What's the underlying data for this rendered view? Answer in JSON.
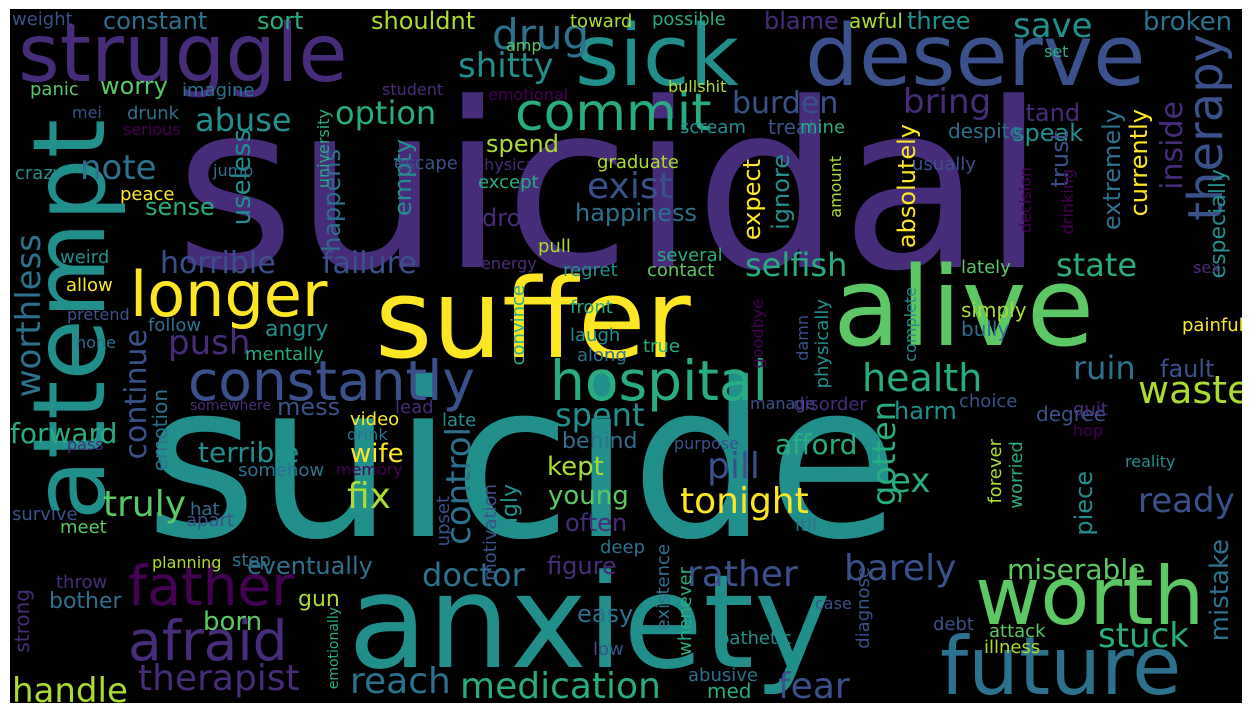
{
  "colors": {
    "background": "#000000",
    "frame": "#ffffff",
    "palette": [
      "#440154",
      "#472c7a",
      "#3b518b",
      "#2c718e",
      "#21908d",
      "#27ad81",
      "#5cc863",
      "#aadc32",
      "#fde725"
    ]
  },
  "words": [
    {
      "text": "suicidal",
      "color": "#472c7a"
    },
    {
      "text": "suicide",
      "color": "#21908d"
    },
    {
      "text": "suffer",
      "color": "#fde725"
    },
    {
      "text": "anxiety",
      "color": "#21908d"
    },
    {
      "text": "alive",
      "color": "#5cc863"
    },
    {
      "text": "attempt",
      "color": "#21908d"
    },
    {
      "text": "deserve",
      "color": "#3b518b"
    },
    {
      "text": "struggle",
      "color": "#472c7a"
    },
    {
      "text": "sick",
      "color": "#21908d"
    },
    {
      "text": "worth",
      "color": "#5cc863"
    },
    {
      "text": "future",
      "color": "#2c718e"
    },
    {
      "text": "longer",
      "color": "#fde725"
    },
    {
      "text": "hospital",
      "color": "#27ad81"
    },
    {
      "text": "constantly",
      "color": "#3b518b"
    },
    {
      "text": "therapy",
      "color": "#3b518b"
    },
    {
      "text": "father",
      "color": "#440154"
    },
    {
      "text": "afraid",
      "color": "#472c7a"
    },
    {
      "text": "commit",
      "color": "#27ad81"
    },
    {
      "text": "medication",
      "color": "#27ad81"
    },
    {
      "text": "therapist",
      "color": "#472c7a"
    },
    {
      "text": "handle",
      "color": "#aadc32"
    },
    {
      "text": "reach",
      "color": "#2c718e"
    },
    {
      "text": "worthless",
      "color": "#2c718e"
    },
    {
      "text": "waste",
      "color": "#aadc32"
    },
    {
      "text": "health",
      "color": "#27ad81"
    },
    {
      "text": "state",
      "color": "#27ad81"
    },
    {
      "text": "exist",
      "color": "#3b518b"
    },
    {
      "text": "selfish",
      "color": "#27ad81"
    },
    {
      "text": "horrible",
      "color": "#3b518b"
    },
    {
      "text": "failure",
      "color": "#3b518b"
    },
    {
      "text": "continue",
      "color": "#3b518b"
    },
    {
      "text": "abuse",
      "color": "#21908d"
    },
    {
      "text": "option",
      "color": "#27ad81"
    },
    {
      "text": "burden",
      "color": "#3b518b"
    },
    {
      "text": "bring",
      "color": "#472c7a"
    },
    {
      "text": "shitty",
      "color": "#21908d"
    },
    {
      "text": "drug",
      "color": "#2c718e"
    },
    {
      "text": "save",
      "color": "#21908d"
    },
    {
      "text": "broken",
      "color": "#2c718e"
    },
    {
      "text": "note",
      "color": "#2c718e"
    },
    {
      "text": "push",
      "color": "#472c7a"
    },
    {
      "text": "ruin",
      "color": "#2c718e"
    },
    {
      "text": "pill",
      "color": "#3b518b"
    },
    {
      "text": "truly",
      "color": "#5cc863"
    },
    {
      "text": "fix",
      "color": "#aadc32"
    },
    {
      "text": "tonight",
      "color": "#fde725"
    },
    {
      "text": "control",
      "color": "#2c718e"
    },
    {
      "text": "doctor",
      "color": "#2c718e"
    },
    {
      "text": "rather",
      "color": "#3b518b"
    },
    {
      "text": "barely",
      "color": "#3b518b"
    },
    {
      "text": "miserable",
      "color": "#5cc863"
    },
    {
      "text": "stuck",
      "color": "#27ad81"
    },
    {
      "text": "fear",
      "color": "#3b518b"
    },
    {
      "text": "ready",
      "color": "#3b518b"
    },
    {
      "text": "eventually",
      "color": "#2c718e"
    },
    {
      "text": "spent",
      "color": "#21908d"
    },
    {
      "text": "afford",
      "color": "#27ad81"
    },
    {
      "text": "gotten",
      "color": "#27ad81"
    },
    {
      "text": "ex",
      "color": "#27ad81"
    },
    {
      "text": "terrible",
      "color": "#21908d"
    },
    {
      "text": "wife",
      "color": "#fde725"
    },
    {
      "text": "kept",
      "color": "#aadc32"
    },
    {
      "text": "young",
      "color": "#5cc863"
    },
    {
      "text": "often",
      "color": "#472c7a"
    },
    {
      "text": "figure",
      "color": "#472c7a"
    },
    {
      "text": "born",
      "color": "#5cc863"
    },
    {
      "text": "forward",
      "color": "#27ad81"
    },
    {
      "text": "mess",
      "color": "#3b518b"
    },
    {
      "text": "harm",
      "color": "#21908d"
    },
    {
      "text": "fault",
      "color": "#3b518b"
    },
    {
      "text": "piece",
      "color": "#21908d"
    },
    {
      "text": "mistake",
      "color": "#2c718e"
    },
    {
      "text": "happiness",
      "color": "#2c718e"
    },
    {
      "text": "inside",
      "color": "#472c7a"
    },
    {
      "text": "speak",
      "color": "#21908d"
    },
    {
      "text": "trust",
      "color": "#3b518b"
    },
    {
      "text": "extremely",
      "color": "#2c718e"
    },
    {
      "text": "currently",
      "color": "#fde725"
    },
    {
      "text": "absolutely",
      "color": "#fde725"
    },
    {
      "text": "expect",
      "color": "#fde725"
    },
    {
      "text": "ignore",
      "color": "#21908d"
    },
    {
      "text": "useless",
      "color": "#21908d"
    },
    {
      "text": "happens",
      "color": "#2c718e"
    },
    {
      "text": "empty",
      "color": "#21908d"
    },
    {
      "text": "drop",
      "color": "#472c7a"
    },
    {
      "text": "sense",
      "color": "#27ad81"
    },
    {
      "text": "worry",
      "color": "#5cc863"
    },
    {
      "text": "constant",
      "color": "#2c718e"
    },
    {
      "text": "sort",
      "color": "#27ad81"
    },
    {
      "text": "shouldnt",
      "color": "#aadc32"
    },
    {
      "text": "blame",
      "color": "#472c7a"
    },
    {
      "text": "three",
      "color": "#21908d"
    },
    {
      "text": "awful",
      "color": "#aadc32"
    },
    {
      "text": "weight",
      "color": "#3b518b"
    },
    {
      "text": "toward",
      "color": "#aadc32"
    },
    {
      "text": "possible",
      "color": "#27ad81"
    },
    {
      "text": "stand",
      "color": "#472c7a"
    },
    {
      "text": "treat",
      "color": "#3b518b"
    },
    {
      "text": "despite",
      "color": "#2c718e"
    },
    {
      "text": "spend",
      "color": "#aadc32"
    },
    {
      "text": "escape",
      "color": "#3b518b"
    },
    {
      "text": "graduate",
      "color": "#aadc32"
    },
    {
      "text": "usually",
      "color": "#3b518b"
    },
    {
      "text": "especially",
      "color": "#21908d"
    },
    {
      "text": "angry",
      "color": "#21908d"
    },
    {
      "text": "mentally",
      "color": "#27ad81"
    },
    {
      "text": "behind",
      "color": "#2c718e"
    },
    {
      "text": "emotion",
      "color": "#2c718e"
    },
    {
      "text": "video",
      "color": "#fde725"
    },
    {
      "text": "lead",
      "color": "#472c7a"
    },
    {
      "text": "late",
      "color": "#21908d"
    },
    {
      "text": "drink",
      "color": "#2c718e"
    },
    {
      "text": "manage",
      "color": "#3b518b"
    },
    {
      "text": "disorder",
      "color": "#472c7a"
    },
    {
      "text": "choice",
      "color": "#3b518b"
    },
    {
      "text": "degree",
      "color": "#3b518b"
    },
    {
      "text": "quit",
      "color": "#472c7a"
    },
    {
      "text": "hop",
      "color": "#440154"
    },
    {
      "text": "reality",
      "color": "#21908d"
    },
    {
      "text": "forever",
      "color": "#aadc32"
    },
    {
      "text": "worried",
      "color": "#27ad81"
    },
    {
      "text": "kick",
      "color": "#21908d"
    },
    {
      "text": "itll",
      "color": "#2c718e"
    },
    {
      "text": "deep",
      "color": "#2c718e"
    },
    {
      "text": "existence",
      "color": "#2c718e"
    },
    {
      "text": "whenever",
      "color": "#27ad81"
    },
    {
      "text": "diagnose",
      "color": "#3b518b"
    },
    {
      "text": "case",
      "color": "#3b518b"
    },
    {
      "text": "debt",
      "color": "#3b518b"
    },
    {
      "text": "attack",
      "color": "#5cc863"
    },
    {
      "text": "illness",
      "color": "#aadc32"
    },
    {
      "text": "pathetic",
      "color": "#21908d"
    },
    {
      "text": "abusive",
      "color": "#2c718e"
    },
    {
      "text": "med",
      "color": "#27ad81"
    },
    {
      "text": "low",
      "color": "#3b518b"
    },
    {
      "text": "easy",
      "color": "#2c718e"
    },
    {
      "text": "gun",
      "color": "#aadc32"
    },
    {
      "text": "bother",
      "color": "#2c718e"
    },
    {
      "text": "throw",
      "color": "#472c7a"
    },
    {
      "text": "strong",
      "color": "#472c7a"
    },
    {
      "text": "step",
      "color": "#2c718e"
    },
    {
      "text": "planning",
      "color": "#aadc32"
    },
    {
      "text": "emotionally",
      "color": "#27ad81"
    },
    {
      "text": "meet",
      "color": "#5cc863"
    },
    {
      "text": "apart",
      "color": "#3b518b"
    },
    {
      "text": "hat",
      "color": "#2c718e"
    },
    {
      "text": "survive",
      "color": "#3b518b"
    },
    {
      "text": "somehow",
      "color": "#2c718e"
    },
    {
      "text": "memory",
      "color": "#440154"
    },
    {
      "text": "upset",
      "color": "#3b518b"
    },
    {
      "text": "motivation",
      "color": "#3b518b"
    },
    {
      "text": "ugly",
      "color": "#21908d"
    },
    {
      "text": "purpose",
      "color": "#3b518b"
    },
    {
      "text": "somewhere",
      "color": "#472c7a"
    },
    {
      "text": "pass",
      "color": "#472c7a"
    },
    {
      "text": "none",
      "color": "#2c718e"
    },
    {
      "text": "pretend",
      "color": "#3b518b"
    },
    {
      "text": "allow",
      "color": "#fde725"
    },
    {
      "text": "weird",
      "color": "#21908d"
    },
    {
      "text": "follow",
      "color": "#2c718e"
    },
    {
      "text": "energy",
      "color": "#472c7a"
    },
    {
      "text": "regret",
      "color": "#21908d"
    },
    {
      "text": "contact",
      "color": "#5cc863"
    },
    {
      "text": "several",
      "color": "#27ad81"
    },
    {
      "text": "pull",
      "color": "#aadc32"
    },
    {
      "text": "front",
      "color": "#27ad81"
    },
    {
      "text": "laugh",
      "color": "#21908d"
    },
    {
      "text": "along",
      "color": "#2c718e"
    },
    {
      "text": "true",
      "color": "#27ad81"
    },
    {
      "text": "convince",
      "color": "#27ad81"
    },
    {
      "text": "goodbye",
      "color": "#440154"
    },
    {
      "text": "damn",
      "color": "#3b518b"
    },
    {
      "text": "physically",
      "color": "#21908d"
    },
    {
      "text": "complete",
      "color": "#21908d"
    },
    {
      "text": "simply",
      "color": "#aadc32"
    },
    {
      "text": "bully",
      "color": "#2c718e"
    },
    {
      "text": "lately",
      "color": "#5cc863"
    },
    {
      "text": "sex",
      "color": "#472c7a"
    },
    {
      "text": "painful",
      "color": "#fde725"
    },
    {
      "text": "decision",
      "color": "#440154"
    },
    {
      "text": "drinking",
      "color": "#440154"
    },
    {
      "text": "amount",
      "color": "#aadc32"
    },
    {
      "text": "except",
      "color": "#27ad81"
    },
    {
      "text": "physical",
      "color": "#472c7a"
    },
    {
      "text": "university",
      "color": "#27ad81"
    },
    {
      "text": "peace",
      "color": "#fde725"
    },
    {
      "text": "crazy",
      "color": "#21908d"
    },
    {
      "text": "jump",
      "color": "#2c718e"
    },
    {
      "text": "serious",
      "color": "#440154"
    },
    {
      "text": "mei",
      "color": "#3b518b"
    },
    {
      "text": "drunk",
      "color": "#2c718e"
    },
    {
      "text": "student",
      "color": "#472c7a"
    },
    {
      "text": "emotional",
      "color": "#440154"
    },
    {
      "text": "scream",
      "color": "#21908d"
    },
    {
      "text": "mine",
      "color": "#27ad81"
    },
    {
      "text": "bullshit",
      "color": "#aadc32"
    },
    {
      "text": "amp",
      "color": "#5cc863"
    },
    {
      "text": "panic",
      "color": "#5cc863"
    },
    {
      "text": "imagine",
      "color": "#2c718e"
    },
    {
      "text": "set",
      "color": "#27ad81"
    }
  ]
}
